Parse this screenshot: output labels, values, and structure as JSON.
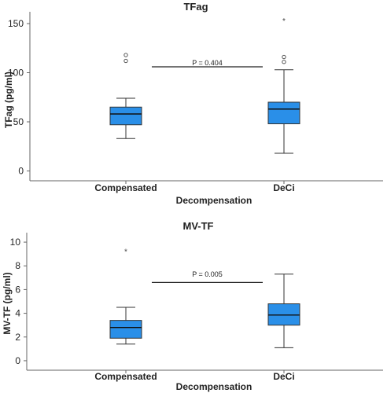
{
  "chart_data": [
    {
      "type": "box",
      "title": "TFag",
      "xlabel": "Decompensation",
      "ylabel": "TFag (pg/ml)",
      "ylim": [
        -10,
        162
      ],
      "yticks": [
        0,
        50,
        100,
        150
      ],
      "categories": [
        "Compensated",
        "DeCi"
      ],
      "boxes": [
        {
          "category": "Compensated",
          "whisker_low": 33,
          "q1": 47,
          "median": 58,
          "q3": 65,
          "whisker_high": 74,
          "outliers": [
            112,
            118
          ],
          "extremes": []
        },
        {
          "category": "DeCi",
          "whisker_low": 18,
          "q1": 48,
          "median": 63,
          "q3": 70,
          "whisker_high": 103,
          "outliers": [
            111,
            116
          ],
          "extremes": [
            154
          ]
        }
      ],
      "annotation": {
        "text": "P = 0.404",
        "value": 106
      },
      "colors": {
        "box": "#2a8fe8",
        "border": "#333333"
      }
    },
    {
      "type": "box",
      "title": "MV-TF",
      "xlabel": "Decompensation",
      "ylabel": "MV-TF (pg/ml)",
      "ylim": [
        -0.8,
        10.8
      ],
      "yticks": [
        0,
        2,
        4,
        6,
        8,
        10
      ],
      "categories": [
        "Compensated",
        "DeCi"
      ],
      "boxes": [
        {
          "category": "Compensated",
          "whisker_low": 1.4,
          "q1": 1.9,
          "median": 2.8,
          "q3": 3.4,
          "whisker_high": 4.5,
          "outliers": [],
          "extremes": [
            9.3
          ]
        },
        {
          "category": "DeCi",
          "whisker_low": 1.1,
          "q1": 3.0,
          "median": 3.85,
          "q3": 4.8,
          "whisker_high": 7.3,
          "outliers": [],
          "extremes": []
        }
      ],
      "annotation": {
        "text": "P = 0.005",
        "value": 6.6
      },
      "colors": {
        "box": "#2a8fe8",
        "border": "#333333"
      }
    }
  ]
}
